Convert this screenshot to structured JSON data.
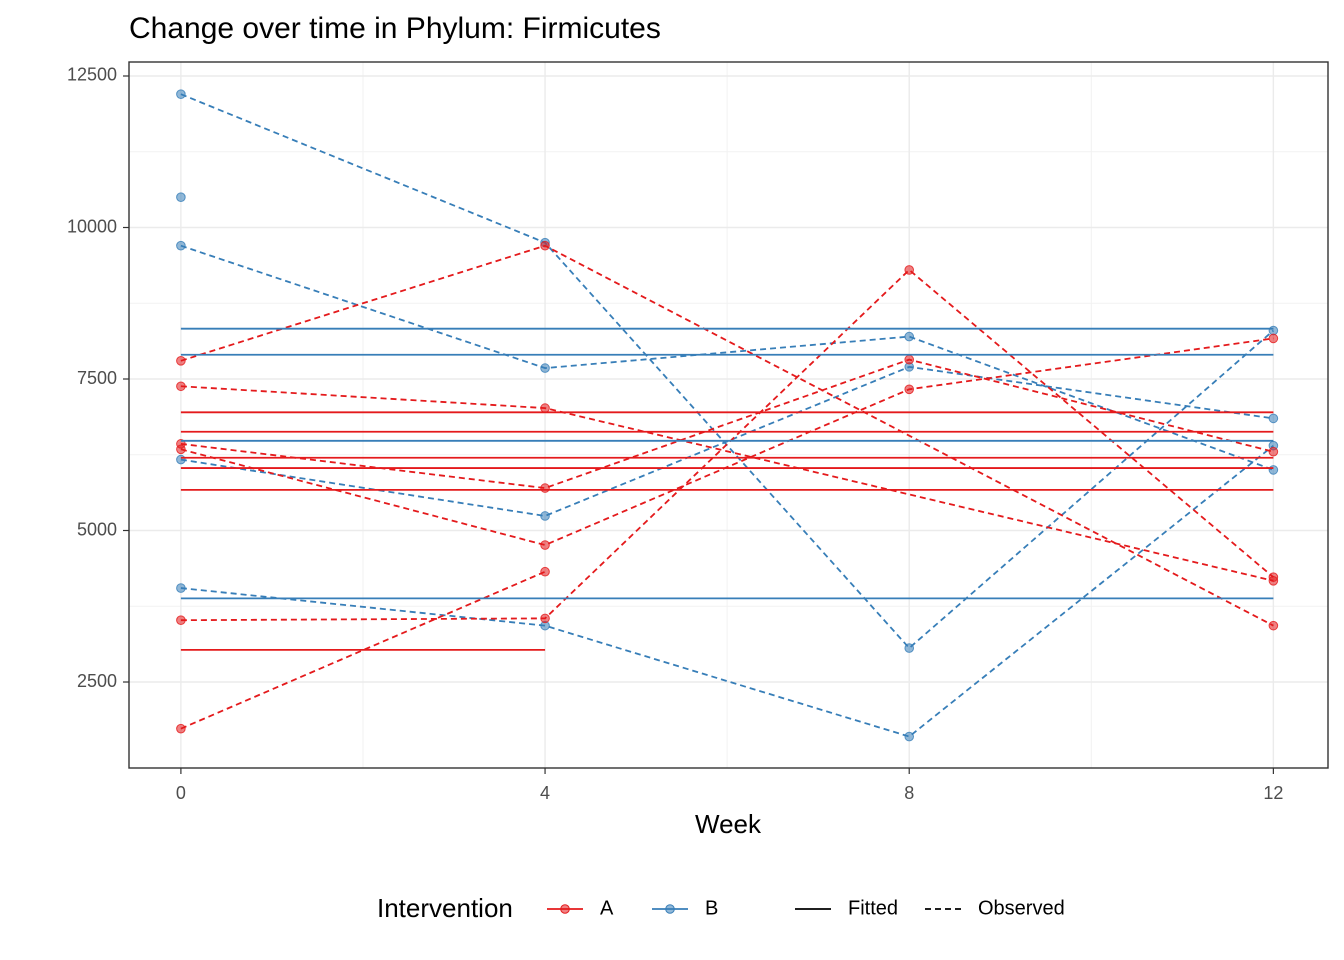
{
  "chart_data": {
    "type": "line",
    "title": "Change over time in Phylum: Firmicutes",
    "x_label": "Week",
    "xlim": [
      -0.57,
      12.6
    ],
    "xticks": [
      0,
      4,
      8,
      12
    ],
    "ylim": [
      1081,
      12731
    ],
    "yticks": [
      2500,
      5000,
      7500,
      10000,
      12500
    ],
    "grid": true,
    "legend": {
      "position": "bottom",
      "title": "Intervention",
      "groups": [
        {
          "name": "A",
          "color": "#E41A1C"
        },
        {
          "name": "B",
          "color": "#377EB8"
        }
      ],
      "linetypes": [
        {
          "name": "Fitted",
          "dash": "solid"
        },
        {
          "name": "Observed",
          "dash": "dashed"
        }
      ]
    },
    "series": [
      {
        "color": "#377EB8",
        "dash": "dashed",
        "points": true,
        "x": [
          0,
          4,
          8,
          12
        ],
        "values": [
          12200,
          9750,
          3060,
          8300
        ]
      },
      {
        "color": "#377EB8",
        "dash": "dashed",
        "points": true,
        "x": [
          0,
          4,
          8,
          12
        ],
        "values": [
          9700,
          7680,
          8200,
          6000
        ]
      },
      {
        "color": "#377EB8",
        "dash": "dashed",
        "points": true,
        "x": [
          0,
          4,
          8,
          12
        ],
        "values": [
          6170,
          5240,
          7700,
          6850
        ]
      },
      {
        "color": "#377EB8",
        "dash": "dashed",
        "points": true,
        "x": [
          0,
          4,
          8,
          12
        ],
        "values": [
          4050,
          3430,
          1600,
          6400
        ]
      },
      {
        "color": "#377EB8",
        "dash": "dashed",
        "points": true,
        "x": [
          0
        ],
        "values": [
          10500
        ]
      },
      {
        "color": "#E41A1C",
        "dash": "dashed",
        "points": true,
        "x": [
          0,
          4,
          12
        ],
        "values": [
          7800,
          9700,
          3430
        ]
      },
      {
        "color": "#E41A1C",
        "dash": "dashed",
        "points": true,
        "x": [
          0,
          4,
          12
        ],
        "values": [
          7380,
          7020,
          4170
        ]
      },
      {
        "color": "#E41A1C",
        "dash": "dashed",
        "points": true,
        "x": [
          0,
          4,
          8,
          12
        ],
        "values": [
          6430,
          5700,
          7820,
          6300
        ]
      },
      {
        "color": "#E41A1C",
        "dash": "dashed",
        "points": true,
        "x": [
          0,
          4,
          8,
          12
        ],
        "values": [
          6340,
          4760,
          7330,
          8170
        ]
      },
      {
        "color": "#E41A1C",
        "dash": "dashed",
        "points": true,
        "x": [
          0,
          4,
          8,
          12
        ],
        "values": [
          3520,
          3550,
          9300,
          4230
        ]
      },
      {
        "color": "#E41A1C",
        "dash": "dashed",
        "points": true,
        "x": [
          0,
          4
        ],
        "values": [
          1730,
          4320
        ]
      },
      {
        "color": "#377EB8",
        "dash": "solid",
        "points": false,
        "x": [
          0,
          12
        ],
        "values": [
          8330,
          8330
        ]
      },
      {
        "color": "#377EB8",
        "dash": "solid",
        "points": false,
        "x": [
          0,
          12
        ],
        "values": [
          7900,
          7900
        ]
      },
      {
        "color": "#377EB8",
        "dash": "solid",
        "points": false,
        "x": [
          0,
          12
        ],
        "values": [
          6480,
          6480
        ]
      },
      {
        "color": "#377EB8",
        "dash": "solid",
        "points": false,
        "x": [
          0,
          12
        ],
        "values": [
          3880,
          3880
        ]
      },
      {
        "color": "#E41A1C",
        "dash": "solid",
        "points": false,
        "x": [
          0,
          12
        ],
        "values": [
          6950,
          6950
        ]
      },
      {
        "color": "#E41A1C",
        "dash": "solid",
        "points": false,
        "x": [
          0,
          12
        ],
        "values": [
          6630,
          6630
        ]
      },
      {
        "color": "#E41A1C",
        "dash": "solid",
        "points": false,
        "x": [
          0,
          12
        ],
        "values": [
          6200,
          6200
        ]
      },
      {
        "color": "#E41A1C",
        "dash": "solid",
        "points": false,
        "x": [
          0,
          12
        ],
        "values": [
          6030,
          6030
        ]
      },
      {
        "color": "#E41A1C",
        "dash": "solid",
        "points": false,
        "x": [
          0,
          12
        ],
        "values": [
          5670,
          5670
        ]
      },
      {
        "color": "#E41A1C",
        "dash": "solid",
        "points": false,
        "x": [
          0,
          4
        ],
        "values": [
          3030,
          3030
        ]
      }
    ]
  }
}
